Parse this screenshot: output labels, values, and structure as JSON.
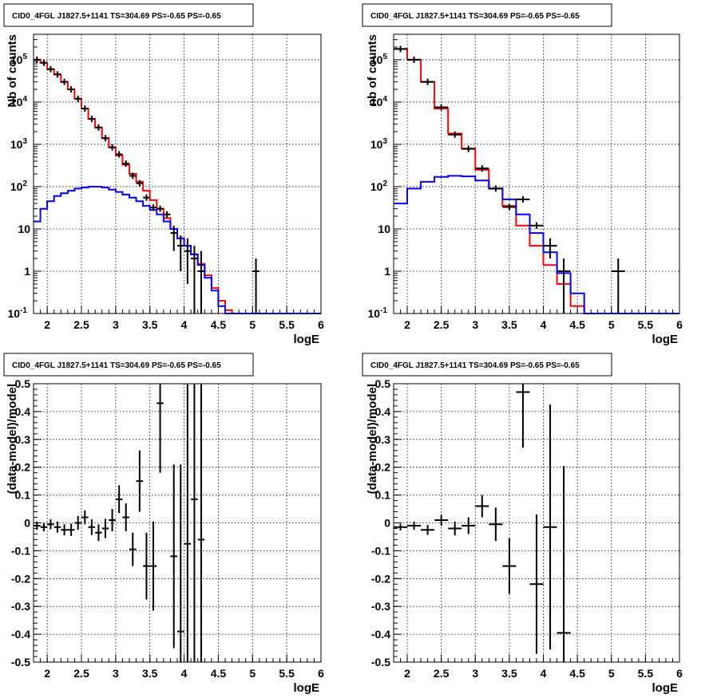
{
  "panel_title": "CID0_4FGL J1827.5+1141 TS=304.69 PS=-0.65 PS=-0.65",
  "chart_data": [
    {
      "type": "line",
      "panel": "top-left",
      "title": "CID0_4FGL J1827.5+1141 TS=304.69 PS=-0.65 PS=-0.65",
      "xlabel": "logE",
      "ylabel": "Nb of counts",
      "xlim": [
        1.8,
        6.0
      ],
      "ylim": [
        0.1,
        400000
      ],
      "yscale": "log",
      "grid": true,
      "xticks": [
        "2",
        "2.5",
        "3",
        "3.5",
        "4",
        "4.5",
        "5",
        "5.5",
        "6"
      ],
      "yticks": [
        "10^-1",
        "1",
        "10",
        "10^2",
        "10^3",
        "10^4",
        "10^5"
      ],
      "bin_edges": [
        1.8,
        1.9,
        2.0,
        2.1,
        2.2,
        2.3,
        2.4,
        2.5,
        2.6,
        2.7,
        2.8,
        2.9,
        3.0,
        3.1,
        3.2,
        3.3,
        3.4,
        3.5,
        3.6,
        3.7,
        3.8,
        3.9,
        4.0,
        4.1,
        4.2,
        4.3,
        4.4,
        4.5,
        4.6,
        4.7,
        4.8,
        4.9,
        5.0,
        5.1,
        5.2,
        5.3,
        5.4,
        5.5,
        5.6,
        5.7,
        5.8,
        5.9,
        6.0
      ],
      "series": [
        {
          "color": "#ff0000",
          "style": "step",
          "values": [
            100000,
            85000,
            60000,
            45000,
            30000,
            20000,
            12000,
            7000,
            4000,
            2500,
            1400,
            850,
            550,
            330,
            200,
            130,
            80,
            48,
            30,
            18,
            10,
            6,
            4,
            2.5,
            1.5,
            0.8,
            0.4,
            0.2,
            0.12,
            0.1,
            0.1,
            0.1,
            0.1,
            0.1,
            0.1,
            0.1,
            0.1,
            0.1,
            0.1,
            0.1,
            0.1,
            0.1
          ]
        },
        {
          "color": "#0000ff",
          "style": "step",
          "values": [
            15,
            30,
            45,
            60,
            70,
            80,
            90,
            95,
            100,
            100,
            95,
            85,
            75,
            65,
            55,
            45,
            35,
            28,
            22,
            15,
            10,
            6,
            4,
            2.5,
            1.4,
            0.7,
            0.35,
            0.15,
            0.1,
            0.1,
            0.1,
            0.1,
            0.1,
            0.1,
            0.1,
            0.1,
            0.1,
            0.1,
            0.1,
            0.1,
            0.1,
            0.1
          ]
        }
      ],
      "data_points": [
        {
          "x": 1.85,
          "y": 100000
        },
        {
          "x": 1.95,
          "y": 85000
        },
        {
          "x": 2.05,
          "y": 60000
        },
        {
          "x": 2.15,
          "y": 45000
        },
        {
          "x": 2.25,
          "y": 30000
        },
        {
          "x": 2.35,
          "y": 20000
        },
        {
          "x": 2.45,
          "y": 12000
        },
        {
          "x": 2.55,
          "y": 7000
        },
        {
          "x": 2.65,
          "y": 4000
        },
        {
          "x": 2.75,
          "y": 2500
        },
        {
          "x": 2.85,
          "y": 1400
        },
        {
          "x": 2.95,
          "y": 850
        },
        {
          "x": 3.05,
          "y": 580
        },
        {
          "x": 3.15,
          "y": 350
        },
        {
          "x": 3.25,
          "y": 180
        },
        {
          "x": 3.35,
          "y": 120
        },
        {
          "x": 3.45,
          "y": 55
        },
        {
          "x": 3.55,
          "y": 32
        },
        {
          "x": 3.65,
          "y": 30
        },
        {
          "x": 3.75,
          "y": 22
        },
        {
          "x": 3.85,
          "y": 8,
          "err_lo": 3,
          "err_hi": 12
        },
        {
          "x": 3.95,
          "y": 4,
          "err_lo": 1,
          "err_hi": 7
        },
        {
          "x": 4.05,
          "y": 3,
          "err_lo": 0.5,
          "err_hi": 6
        },
        {
          "x": 4.15,
          "y": 2,
          "err_lo": 0.1,
          "err_hi": 4
        },
        {
          "x": 4.25,
          "y": 1,
          "err_lo": 0.1,
          "err_hi": 3
        },
        {
          "x": 5.05,
          "y": 1,
          "err_lo": 0.1,
          "err_hi": 2
        }
      ]
    },
    {
      "type": "line",
      "panel": "top-right",
      "title": "CID0_4FGL J1827.5+1141 TS=304.69 PS=-0.65 PS=-0.65",
      "xlabel": "logE",
      "ylabel": "nb of counts",
      "xlim": [
        1.8,
        6.0
      ],
      "ylim": [
        0.1,
        400000
      ],
      "yscale": "log",
      "grid": true,
      "xticks": [
        "2",
        "2.5",
        "3",
        "3.5",
        "4",
        "4.5",
        "5",
        "5.5",
        "6"
      ],
      "yticks": [
        "10^-1",
        "1",
        "10",
        "10^2",
        "10^3",
        "10^4",
        "10^5"
      ],
      "bin_edges": [
        1.8,
        2.0,
        2.2,
        2.4,
        2.6,
        2.8,
        3.0,
        3.2,
        3.4,
        3.6,
        3.8,
        4.0,
        4.2,
        4.4,
        4.6,
        4.8,
        5.0,
        5.2,
        5.4,
        5.6,
        5.8,
        6.0
      ],
      "series": [
        {
          "color": "#ff0000",
          "style": "step",
          "values": [
            180000,
            100000,
            30000,
            7000,
            1800,
            800,
            250,
            90,
            35,
            12,
            4,
            1.4,
            0.5,
            0.15,
            0.1,
            0.1,
            0.1,
            0.1,
            0.1,
            0.1,
            0.1
          ]
        },
        {
          "color": "#0000ff",
          "style": "step",
          "values": [
            40,
            90,
            130,
            170,
            180,
            175,
            140,
            90,
            50,
            22,
            8,
            2.8,
            0.9,
            0.3,
            0.1,
            0.1,
            0.1,
            0.1,
            0.1,
            0.1,
            0.1
          ]
        }
      ],
      "data_points": [
        {
          "x": 1.9,
          "y": 180000
        },
        {
          "x": 2.1,
          "y": 100000
        },
        {
          "x": 2.3,
          "y": 30000
        },
        {
          "x": 2.5,
          "y": 7500
        },
        {
          "x": 2.7,
          "y": 1700
        },
        {
          "x": 2.9,
          "y": 780
        },
        {
          "x": 3.1,
          "y": 270
        },
        {
          "x": 3.3,
          "y": 90
        },
        {
          "x": 3.5,
          "y": 33
        },
        {
          "x": 3.7,
          "y": 50
        },
        {
          "x": 3.9,
          "y": 12
        },
        {
          "x": 4.1,
          "y": 4,
          "err_lo": 2,
          "err_hi": 6
        },
        {
          "x": 4.3,
          "y": 1,
          "err_lo": 0.1,
          "err_hi": 2
        },
        {
          "x": 5.1,
          "y": 1,
          "err_lo": 0.1,
          "err_hi": 2
        }
      ]
    },
    {
      "type": "scatter",
      "panel": "bottom-left",
      "title": "CID0_4FGL J1827.5+1141 TS=304.69 PS=-0.65 PS=-0.65",
      "xlabel": "logE",
      "ylabel": "(data-model)/model",
      "xlim": [
        1.8,
        6.0
      ],
      "ylim": [
        -0.5,
        0.5
      ],
      "grid": true,
      "xticks": [
        "2",
        "2.5",
        "3",
        "3.5",
        "4",
        "4.5",
        "5",
        "5.5",
        "6"
      ],
      "yticks": [
        "-0.5",
        "-0.4",
        "-0.3",
        "-0.2",
        "-0.1",
        "0",
        "0.1",
        "0.2",
        "0.3",
        "0.4",
        "0.5"
      ],
      "half_width": 0.05,
      "points": [
        {
          "x": 1.85,
          "y": -0.01,
          "err": 0.015
        },
        {
          "x": 1.95,
          "y": -0.015,
          "err": 0.015
        },
        {
          "x": 2.05,
          "y": -0.005,
          "err": 0.018
        },
        {
          "x": 2.15,
          "y": -0.015,
          "err": 0.02
        },
        {
          "x": 2.25,
          "y": -0.025,
          "err": 0.02
        },
        {
          "x": 2.35,
          "y": -0.025,
          "err": 0.022
        },
        {
          "x": 2.45,
          "y": 0.0,
          "err": 0.025
        },
        {
          "x": 2.55,
          "y": 0.02,
          "err": 0.025
        },
        {
          "x": 2.65,
          "y": -0.015,
          "err": 0.028
        },
        {
          "x": 2.75,
          "y": -0.035,
          "err": 0.03
        },
        {
          "x": 2.85,
          "y": -0.02,
          "err": 0.035
        },
        {
          "x": 2.95,
          "y": 0.01,
          "err": 0.04
        },
        {
          "x": 3.05,
          "y": 0.085,
          "err": 0.05
        },
        {
          "x": 3.15,
          "y": 0.02,
          "err": 0.05
        },
        {
          "x": 3.25,
          "y": -0.095,
          "err": 0.06
        },
        {
          "x": 3.35,
          "y": 0.15,
          "err": 0.11
        },
        {
          "x": 3.45,
          "y": -0.155,
          "err": 0.12
        },
        {
          "x": 3.55,
          "y": -0.155,
          "err": 0.16
        },
        {
          "x": 3.65,
          "y": 0.43,
          "err": 0.25
        },
        {
          "x": 3.85,
          "y": -0.12,
          "err": 0.33
        },
        {
          "x": 3.95,
          "y": -0.39,
          "err": 0.6
        },
        {
          "x": 4.05,
          "y": -0.075,
          "err": 0.6
        },
        {
          "x": 4.15,
          "y": 0.085,
          "err": 0.7
        },
        {
          "x": 4.25,
          "y": -0.06,
          "err": 0.8
        }
      ]
    },
    {
      "type": "scatter",
      "panel": "bottom-right",
      "title": "CID0_4FGL J1827.5+1141 TS=304.69 PS=-0.65 PS=-0.65",
      "xlabel": "logE",
      "ylabel": "(data-model)/model",
      "xlim": [
        1.8,
        6.0
      ],
      "ylim": [
        -0.5,
        0.5
      ],
      "grid": true,
      "xticks": [
        "2",
        "2.5",
        "3",
        "3.5",
        "4",
        "4.5",
        "5",
        "5.5",
        "6"
      ],
      "yticks": [
        "-0.5",
        "-0.4",
        "-0.3",
        "-0.2",
        "-0.1",
        "0",
        "0.1",
        "0.2",
        "0.3",
        "0.4",
        "0.5"
      ],
      "half_width": 0.1,
      "points": [
        {
          "x": 1.9,
          "y": -0.015,
          "err": 0.012
        },
        {
          "x": 2.1,
          "y": -0.01,
          "err": 0.015
        },
        {
          "x": 2.3,
          "y": -0.025,
          "err": 0.018
        },
        {
          "x": 2.5,
          "y": 0.01,
          "err": 0.02
        },
        {
          "x": 2.7,
          "y": -0.02,
          "err": 0.025
        },
        {
          "x": 2.9,
          "y": -0.01,
          "err": 0.03
        },
        {
          "x": 3.1,
          "y": 0.06,
          "err": 0.04
        },
        {
          "x": 3.3,
          "y": -0.005,
          "err": 0.06
        },
        {
          "x": 3.5,
          "y": -0.155,
          "err": 0.1
        },
        {
          "x": 3.7,
          "y": 0.47,
          "err": 0.2
        },
        {
          "x": 3.9,
          "y": -0.22,
          "err": 0.25
        },
        {
          "x": 4.1,
          "y": -0.015,
          "err": 0.44
        },
        {
          "x": 4.3,
          "y": -0.395,
          "err": 0.6
        }
      ]
    }
  ]
}
